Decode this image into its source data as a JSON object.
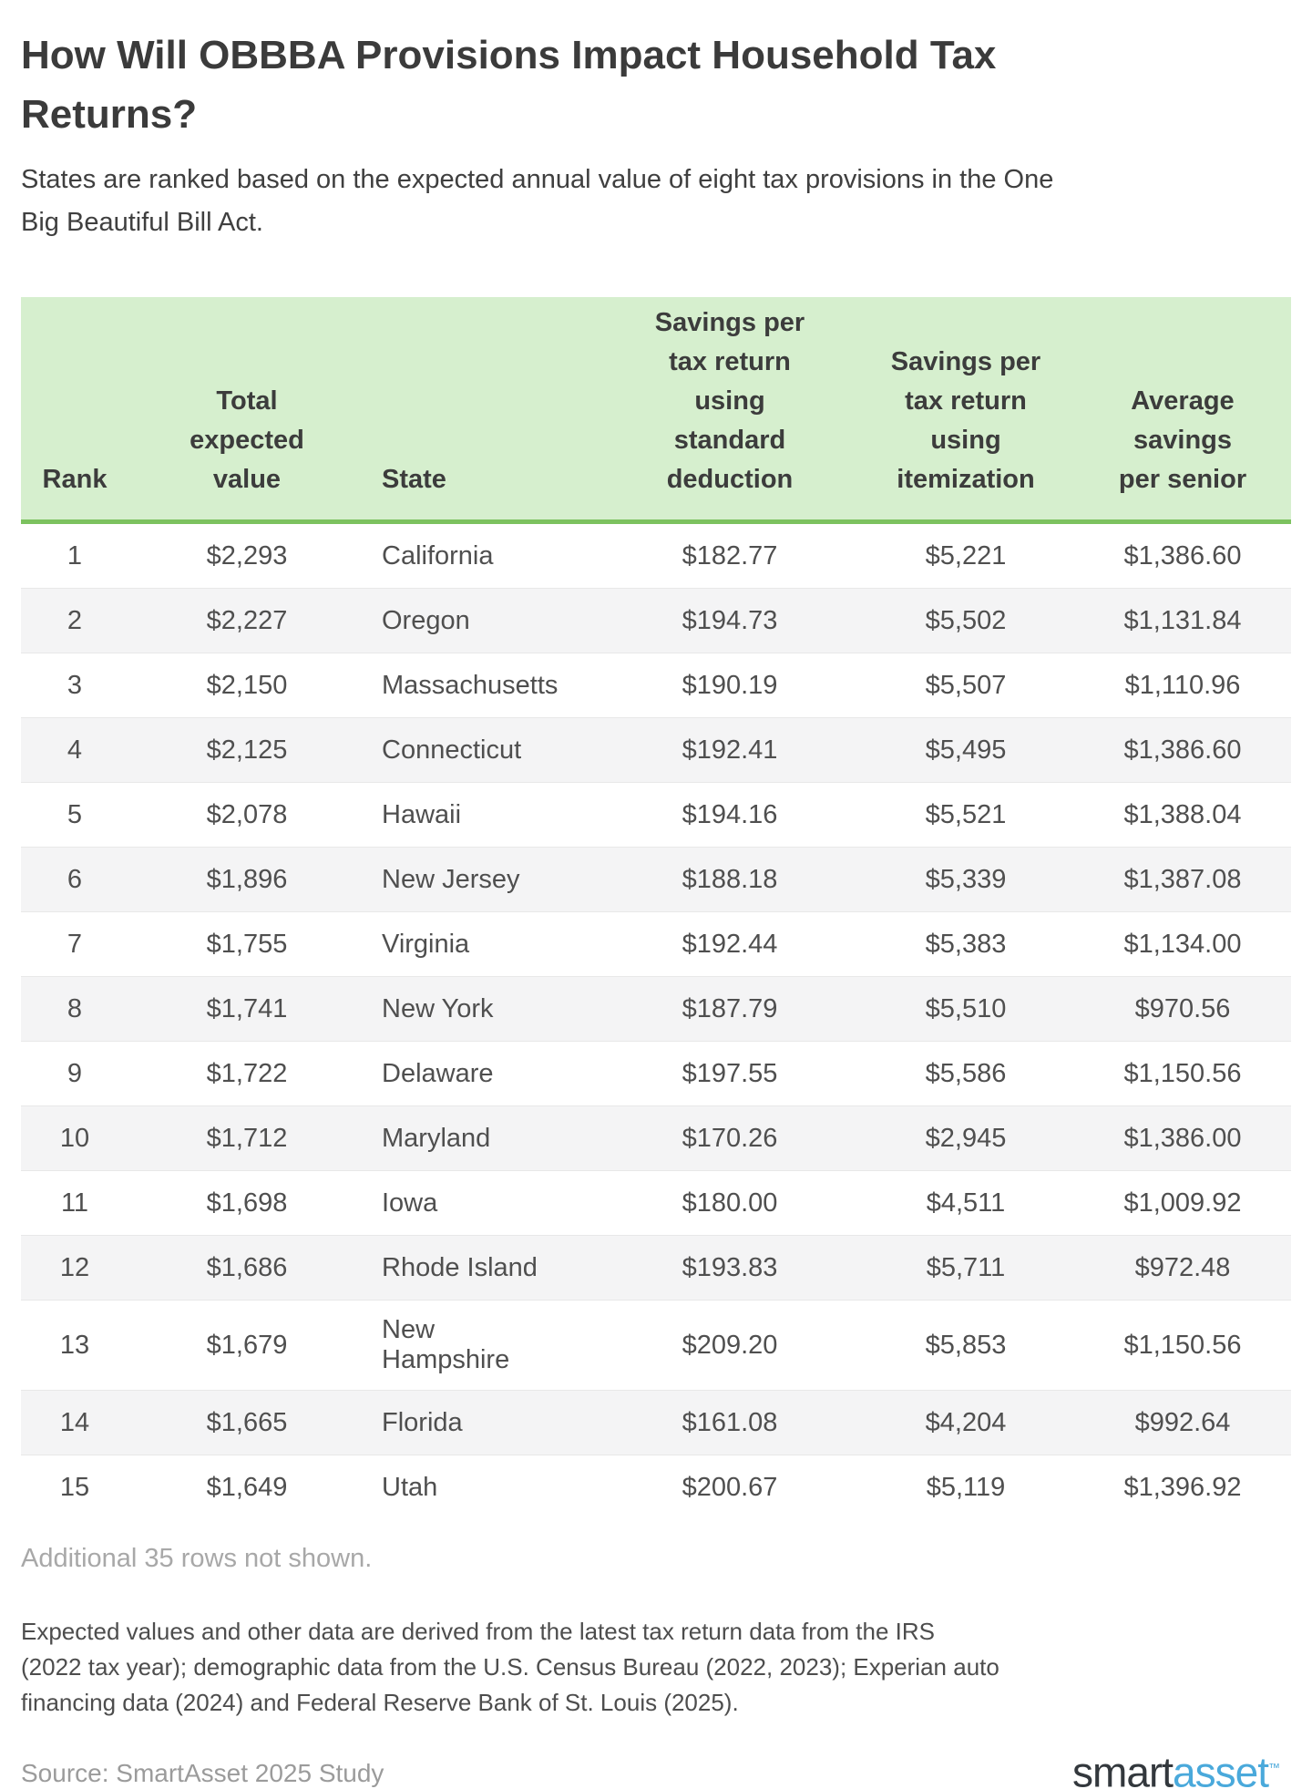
{
  "title": "How Will OBBBA Provisions Impact Household Tax Returns?",
  "subtitle": "States are ranked based on the expected annual value of eight tax provisions in the One Big Beautiful Bill Act.",
  "chart_data": {
    "type": "table",
    "title": "How Will OBBBA Provisions Impact Household Tax Returns?",
    "columns": [
      "Rank",
      "Total\nexpected\nvalue",
      "State",
      "Savings per\ntax return\nusing\nstandard\ndeduction",
      "Savings per\ntax return\nusing\nitemization",
      "Average\nsavings\nper senior"
    ],
    "column_names_plain": [
      "Rank",
      "Total expected value",
      "State",
      "Savings per tax return using standard deduction",
      "Savings per tax return using itemization",
      "Average savings per senior"
    ],
    "rows": [
      {
        "rank": "1",
        "total": "$2,293",
        "state": "California",
        "std": "$182.77",
        "item": "$5,221",
        "senior": "$1,386.60"
      },
      {
        "rank": "2",
        "total": "$2,227",
        "state": "Oregon",
        "std": "$194.73",
        "item": "$5,502",
        "senior": "$1,131.84"
      },
      {
        "rank": "3",
        "total": "$2,150",
        "state": "Massachusetts",
        "std": "$190.19",
        "item": "$5,507",
        "senior": "$1,110.96"
      },
      {
        "rank": "4",
        "total": "$2,125",
        "state": "Connecticut",
        "std": "$192.41",
        "item": "$5,495",
        "senior": "$1,386.60"
      },
      {
        "rank": "5",
        "total": "$2,078",
        "state": "Hawaii",
        "std": "$194.16",
        "item": "$5,521",
        "senior": "$1,388.04"
      },
      {
        "rank": "6",
        "total": "$1,896",
        "state": "New Jersey",
        "std": "$188.18",
        "item": "$5,339",
        "senior": "$1,387.08"
      },
      {
        "rank": "7",
        "total": "$1,755",
        "state": "Virginia",
        "std": "$192.44",
        "item": "$5,383",
        "senior": "$1,134.00"
      },
      {
        "rank": "8",
        "total": "$1,741",
        "state": "New York",
        "std": "$187.79",
        "item": "$5,510",
        "senior": "$970.56"
      },
      {
        "rank": "9",
        "total": "$1,722",
        "state": "Delaware",
        "std": "$197.55",
        "item": "$5,586",
        "senior": "$1,150.56"
      },
      {
        "rank": "10",
        "total": "$1,712",
        "state": "Maryland",
        "std": "$170.26",
        "item": "$2,945",
        "senior": "$1,386.00"
      },
      {
        "rank": "11",
        "total": "$1,698",
        "state": "Iowa",
        "std": "$180.00",
        "item": "$4,511",
        "senior": "$1,009.92"
      },
      {
        "rank": "12",
        "total": "$1,686",
        "state": "Rhode Island",
        "std": "$193.83",
        "item": "$5,711",
        "senior": "$972.48"
      },
      {
        "rank": "13",
        "total": "$1,679",
        "state": "New Hampshire",
        "std": "$209.20",
        "item": "$5,853",
        "senior": "$1,150.56"
      },
      {
        "rank": "14",
        "total": "$1,665",
        "state": "Florida",
        "std": "$161.08",
        "item": "$4,204",
        "senior": "$992.64"
      },
      {
        "rank": "15",
        "total": "$1,649",
        "state": "Utah",
        "std": "$200.67",
        "item": "$5,119",
        "senior": "$1,396.92"
      }
    ],
    "additional_rows_note": "Additional 35 rows not shown.",
    "layout": {
      "header_bg": "#d6efce",
      "header_rule": "#7cc25f",
      "alt_row_bg": "#f4f4f5",
      "grid": "horizontal dividers only",
      "money_columns_alignment": "center",
      "state_column_alignment": "left"
    }
  },
  "footer": {
    "methodology": "Expected values and other data are derived from the latest tax return data from the IRS (2022 tax year); demographic data from the U.S. Census Bureau (2022, 2023); Experian auto financing data (2024) and Federal Reserve Bank of St. Louis (2025).",
    "source": "Source: SmartAsset 2025 Study",
    "logo": {
      "part1": "smart",
      "part2": "asset",
      "tm": "™"
    }
  },
  "colors": {
    "accent_green": "#7cc25f",
    "header_bg": "#d6efce",
    "logo_dark": "#33383d",
    "logo_blue": "#4aa9db",
    "title_text": "#3b3b3b",
    "muted_text": "#a8a8a8"
  }
}
